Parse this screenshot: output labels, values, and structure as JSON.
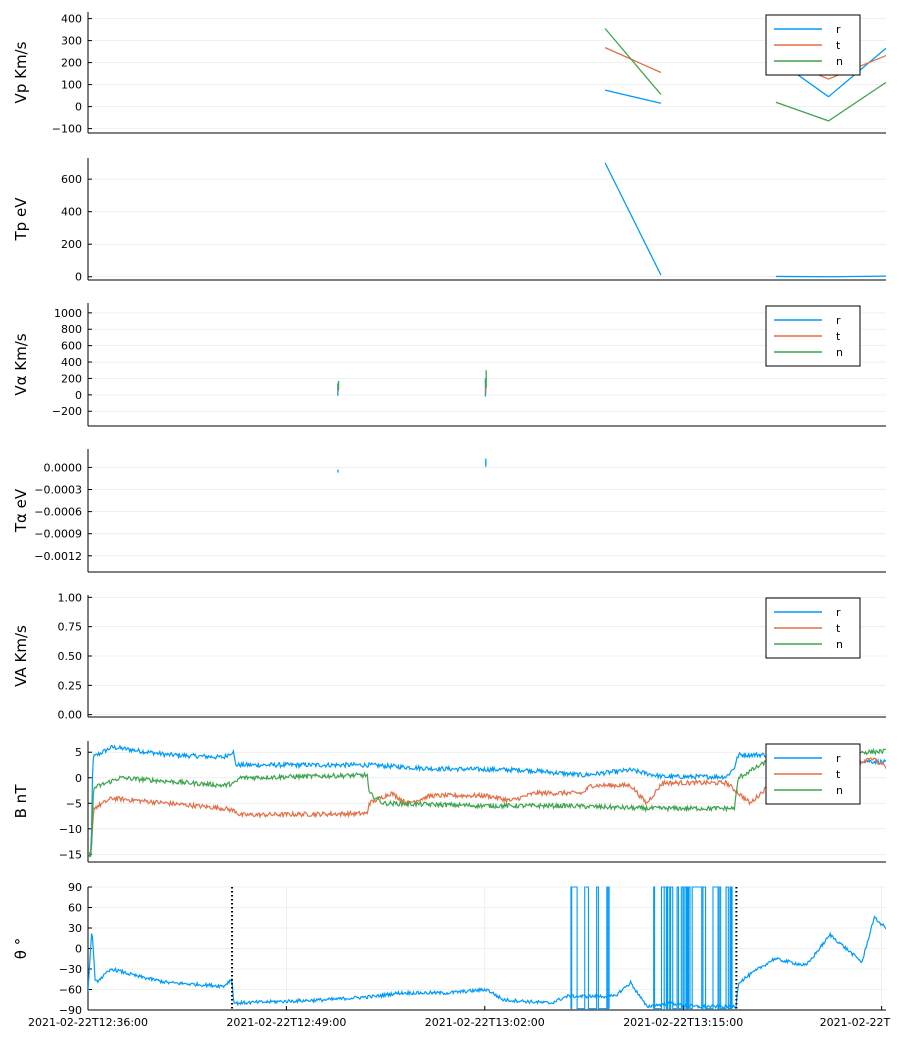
{
  "colors": {
    "r": "#009AFA",
    "t": "#E36F47",
    "n": "#3EA44E",
    "axis": "#000000",
    "grid": "#EBEBEB"
  },
  "chart_data": [
    {
      "id": "vp",
      "type": "line",
      "ylabel": "Vp Km/s",
      "ylim": [
        -120,
        430
      ],
      "yticks": [
        -100,
        0,
        100,
        200,
        300,
        400
      ],
      "yticklabels": [
        "−100",
        "0",
        "100",
        "200",
        "300",
        "400"
      ],
      "legend": [
        "r",
        "t",
        "n"
      ],
      "series": [
        {
          "name": "r",
          "color": "r",
          "segments": [
            [
              [
                0.648,
                75
              ],
              [
                0.718,
                15
              ]
            ],
            [
              [
                0.862,
                215
              ],
              [
                0.928,
                45
              ],
              [
                1.0,
                265
              ]
            ]
          ]
        },
        {
          "name": "t",
          "color": "t",
          "segments": [
            [
              [
                0.648,
                268
              ],
              [
                0.718,
                155
              ]
            ],
            [
              [
                0.862,
                225
              ],
              [
                0.928,
                125
              ],
              [
                1.0,
                232
              ]
            ]
          ]
        },
        {
          "name": "n",
          "color": "n",
          "segments": [
            [
              [
                0.648,
                355
              ],
              [
                0.718,
                55
              ]
            ],
            [
              [
                0.862,
                20
              ],
              [
                0.928,
                -65
              ],
              [
                1.0,
                110
              ]
            ]
          ]
        }
      ]
    },
    {
      "id": "tp",
      "type": "line",
      "ylabel": "Tp eV",
      "ylim": [
        -20,
        730
      ],
      "yticks": [
        0,
        200,
        400,
        600
      ],
      "yticklabels": [
        "0",
        "200",
        "400",
        "600"
      ],
      "legend": [],
      "series": [
        {
          "name": "r",
          "color": "r",
          "segments": [
            [
              [
                0.648,
                700
              ],
              [
                0.718,
                10
              ]
            ],
            [
              [
                0.862,
                2
              ],
              [
                0.93,
                0
              ],
              [
                1.0,
                4
              ]
            ]
          ]
        }
      ]
    },
    {
      "id": "va",
      "type": "line",
      "ylabel": "Vα Km/s",
      "ylim": [
        -380,
        1120
      ],
      "yticks": [
        -200,
        0,
        200,
        400,
        600,
        800,
        1000
      ],
      "yticklabels": [
        "−200",
        "0",
        "200",
        "400",
        "600",
        "800",
        "1000"
      ],
      "legend": [
        "r",
        "t",
        "n"
      ],
      "series": [
        {
          "name": "r",
          "color": "r",
          "segments": [
            [
              [
                0.313,
                -10
              ],
              [
                0.313,
                140
              ]
            ],
            [
              [
                0.498,
                -20
              ],
              [
                0.498,
                200
              ]
            ]
          ]
        },
        {
          "name": "t",
          "color": "t",
          "segments": [
            [
              [
                0.3135,
                40
              ],
              [
                0.3135,
                110
              ]
            ],
            [
              [
                0.4985,
                20
              ],
              [
                0.4985,
                150
              ]
            ]
          ]
        },
        {
          "name": "n",
          "color": "n",
          "segments": [
            [
              [
                0.314,
                60
              ],
              [
                0.314,
                170
              ]
            ],
            [
              [
                0.499,
                80
              ],
              [
                0.499,
                300
              ]
            ]
          ]
        }
      ]
    },
    {
      "id": "ta",
      "type": "line",
      "ylabel": "Tα eV",
      "ylim": [
        -0.00142,
        0.00025
      ],
      "yticks": [
        -0.0012,
        -0.0009,
        -0.0006,
        -0.0003,
        0.0
      ],
      "yticklabels": [
        "−0.0012",
        "−0.0009",
        "−0.0006",
        "−0.0003",
        "0.0000"
      ],
      "legend": [],
      "series": [
        {
          "name": "r",
          "color": "r",
          "segments": [
            [
              [
                0.313,
                -3e-05
              ],
              [
                0.3135,
                -7e-05
              ]
            ],
            [
              [
                0.4985,
                0.00012
              ],
              [
                0.4985,
                1e-05
              ]
            ]
          ]
        }
      ]
    },
    {
      "id": "vA",
      "type": "line",
      "ylabel": "VA Km/s",
      "ylim": [
        -0.02,
        1.02
      ],
      "yticks": [
        0.0,
        0.25,
        0.5,
        0.75,
        1.0
      ],
      "yticklabels": [
        "0.00",
        "0.25",
        "0.50",
        "0.75",
        "1.00"
      ],
      "legend": [
        "r",
        "t",
        "n"
      ],
      "series": []
    },
    {
      "id": "b",
      "type": "line",
      "ylabel": "B nT",
      "ylim": [
        -16.5,
        7.2
      ],
      "yticks": [
        -15,
        -10,
        -5,
        0,
        5
      ],
      "yticklabels": [
        "−15",
        "−10",
        "−5",
        "0",
        "5"
      ],
      "legend": [
        "r",
        "t",
        "n"
      ],
      "noise": 0.45,
      "series": [
        {
          "name": "r",
          "color": "r",
          "anchors": [
            [
              0.0,
              -15
            ],
            [
              0.004,
              -15
            ],
            [
              0.006,
              4
            ],
            [
              0.03,
              6
            ],
            [
              0.1,
              4.5
            ],
            [
              0.17,
              4
            ],
            [
              0.182,
              5.2
            ],
            [
              0.185,
              2.5
            ],
            [
              0.35,
              2.5
            ],
            [
              0.43,
              1.8
            ],
            [
              0.55,
              1.5
            ],
            [
              0.62,
              0.5
            ],
            [
              0.68,
              1.5
            ],
            [
              0.72,
              0.2
            ],
            [
              0.8,
              0.2
            ],
            [
              0.81,
              2
            ],
            [
              0.815,
              4.5
            ],
            [
              0.88,
              4.5
            ],
            [
              1.0,
              3
            ]
          ]
        },
        {
          "name": "t",
          "color": "t",
          "anchors": [
            [
              0.0,
              -15
            ],
            [
              0.004,
              -15
            ],
            [
              0.007,
              -6
            ],
            [
              0.03,
              -4
            ],
            [
              0.17,
              -6
            ],
            [
              0.185,
              -6.5
            ],
            [
              0.19,
              -7.3
            ],
            [
              0.35,
              -7
            ],
            [
              0.352,
              -5
            ],
            [
              0.38,
              -3
            ],
            [
              0.4,
              -5
            ],
            [
              0.43,
              -3.5
            ],
            [
              0.5,
              -3.5
            ],
            [
              0.53,
              -4.5
            ],
            [
              0.56,
              -3
            ],
            [
              0.62,
              -3
            ],
            [
              0.63,
              -1.5
            ],
            [
              0.68,
              -1.5
            ],
            [
              0.7,
              -5
            ],
            [
              0.72,
              -1
            ],
            [
              0.8,
              -1
            ],
            [
              0.83,
              -5
            ],
            [
              0.85,
              -2
            ],
            [
              0.88,
              1
            ],
            [
              0.91,
              0.5
            ],
            [
              0.95,
              1.5
            ],
            [
              0.98,
              4
            ],
            [
              1.0,
              2
            ]
          ]
        },
        {
          "name": "n",
          "color": "n",
          "anchors": [
            [
              0.0,
              -15
            ],
            [
              0.004,
              -15
            ],
            [
              0.007,
              -2
            ],
            [
              0.04,
              0
            ],
            [
              0.17,
              -1.5
            ],
            [
              0.185,
              -1
            ],
            [
              0.19,
              0
            ],
            [
              0.35,
              0.5
            ],
            [
              0.352,
              -3
            ],
            [
              0.37,
              -5
            ],
            [
              0.5,
              -5.5
            ],
            [
              0.6,
              -5.5
            ],
            [
              0.7,
              -6
            ],
            [
              0.81,
              -6
            ],
            [
              0.815,
              0
            ],
            [
              0.86,
              4
            ],
            [
              0.9,
              4.5
            ],
            [
              1.0,
              5.2
            ]
          ]
        }
      ]
    },
    {
      "id": "theta",
      "type": "line",
      "ylabel": "θ °",
      "ylim": [
        -90,
        90
      ],
      "yticks": [
        -90,
        -60,
        -30,
        0,
        30,
        60,
        90
      ],
      "yticklabels": [
        "−90",
        "−60",
        "−30",
        "0",
        "30",
        "60",
        "90"
      ],
      "legend": [],
      "noise": 2.5,
      "vlines": [
        0.1805,
        0.8125
      ],
      "xgrid": [
        0.0,
        0.2486,
        0.4972,
        0.7459,
        0.9945
      ],
      "series": [
        {
          "name": "r",
          "color": "r",
          "anchors": [
            [
              0.0,
              -60
            ],
            [
              0.005,
              30
            ],
            [
              0.009,
              -50
            ],
            [
              0.03,
              -30
            ],
            [
              0.06,
              -40
            ],
            [
              0.1,
              -50
            ],
            [
              0.17,
              -55
            ],
            [
              0.18,
              -45
            ],
            [
              0.183,
              -80
            ],
            [
              0.3,
              -75
            ],
            [
              0.36,
              -70
            ],
            [
              0.39,
              -65
            ],
            [
              0.45,
              -65
            ],
            [
              0.5,
              -60
            ],
            [
              0.52,
              -75
            ],
            [
              0.58,
              -80
            ],
            [
              0.6,
              -70
            ],
            [
              0.66,
              -70
            ],
            [
              0.68,
              -50
            ],
            [
              0.7,
              -85
            ],
            [
              0.73,
              -80
            ],
            [
              0.76,
              -85
            ],
            [
              0.812,
              -85
            ],
            [
              0.815,
              -50
            ],
            [
              0.84,
              -30
            ],
            [
              0.86,
              -15
            ],
            [
              0.9,
              -25
            ],
            [
              0.93,
              20
            ],
            [
              0.97,
              -20
            ],
            [
              0.985,
              45
            ],
            [
              1.0,
              30
            ]
          ]
        }
      ],
      "bursts": [
        [
          0.585,
          0.66,
          12
        ],
        [
          0.705,
          0.81,
          40
        ]
      ]
    }
  ],
  "xaxis": {
    "ticks": [
      0.0,
      0.2486,
      0.4972,
      0.7459,
      0.9945
    ],
    "labels": [
      "2021-02-22T12:36:00",
      "2021-02-22T12:49:00",
      "2021-02-22T13:02:00",
      "2021-02-22T13:15:00",
      "2021-02-22T"
    ]
  }
}
